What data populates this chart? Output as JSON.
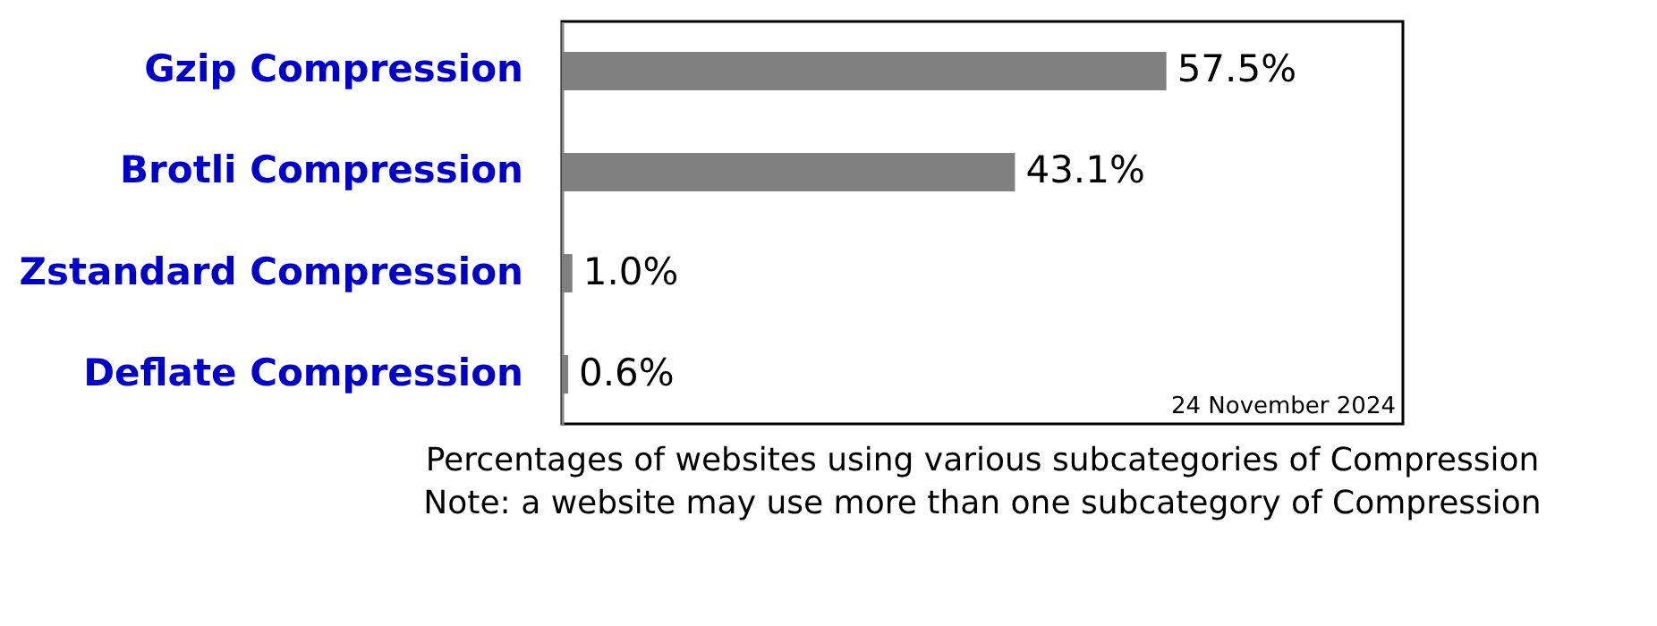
{
  "chart_data": {
    "type": "bar",
    "orientation": "horizontal",
    "categories": [
      "Gzip Compression",
      "Brotli Compression",
      "Zstandard Compression",
      "Deflate Compression"
    ],
    "values": [
      57.5,
      43.1,
      1.0,
      0.6
    ],
    "color": "#808080",
    "value_labels": [
      "57.5%",
      "43.1%",
      "1.0%",
      "0.6%"
    ],
    "xlim": [
      0,
      80
    ],
    "tick_labels": "y",
    "annotations": [
      "24 November 2024",
      "Percentages of websites using various subcategories of Compression",
      "Note: a website may use more than one subcategory of Compression"
    ]
  }
}
